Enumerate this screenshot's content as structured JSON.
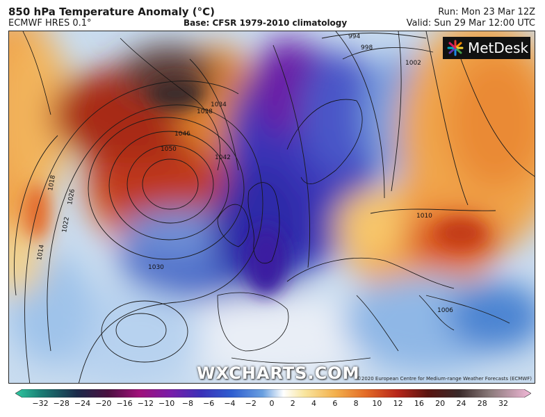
{
  "header": {
    "title": "850 hPa Temperature Anomaly (°C)",
    "model": "ECMWF HRES 0.1°",
    "base": "Base: CFSR 1979-2010 climatology",
    "run": "Run: Mon 23 Mar 12Z",
    "valid": "Valid: Sun 29 Mar 12:00 UTC"
  },
  "brand": {
    "name": "MetDesk",
    "icon": "metdesk-logo-icon"
  },
  "watermark": "WXCHARTS.COM",
  "copyright": "©2020 European Centre for Medium-range Weather Forecasts (ECMWF)",
  "isobars": {
    "labels": [
      "1050",
      "1046",
      "1042",
      "1038",
      "1034",
      "1030",
      "1026",
      "1022",
      "1018",
      "1014",
      "1010",
      "1006",
      "1002",
      "998",
      "994"
    ]
  },
  "colorbar": {
    "ticks": [
      "−32",
      "−28",
      "−24",
      "−20",
      "−16",
      "−12",
      "−10",
      "−8",
      "−6",
      "−4",
      "−2",
      "0",
      "2",
      "4",
      "6",
      "8",
      "10",
      "12",
      "16",
      "20",
      "24",
      "28",
      "32"
    ]
  }
}
